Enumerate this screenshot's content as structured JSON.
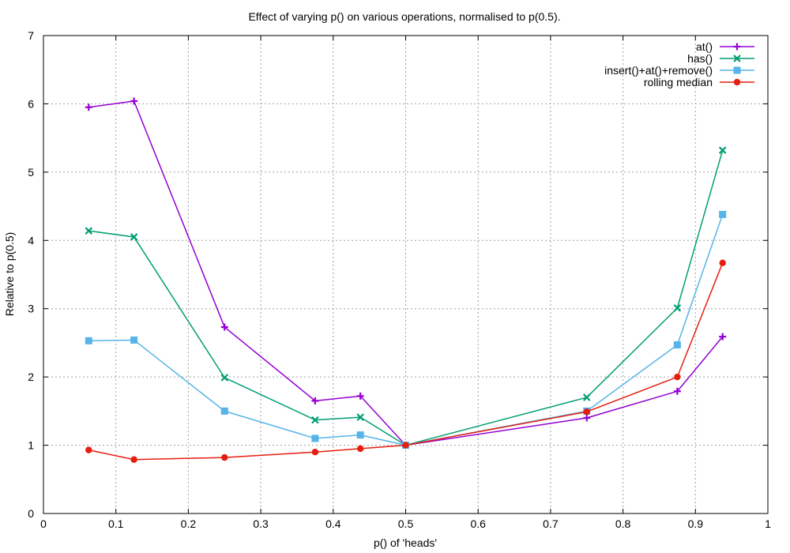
{
  "chart_data": {
    "type": "line",
    "title": "Effect of varying p() on various operations, normalised to p(0.5).",
    "xlabel": "p() of 'heads'",
    "ylabel": "Relative to p(0.5)",
    "xlim": [
      0,
      1
    ],
    "ylim": [
      0,
      7
    ],
    "xticks": [
      0,
      0.1,
      0.2,
      0.3,
      0.4,
      0.5,
      0.6,
      0.7,
      0.8,
      0.9,
      1
    ],
    "xtick_labels": [
      "0",
      "0.1",
      "0.2",
      "0.3",
      "0.4",
      "0.5",
      "0.6",
      "0.7",
      "0.8",
      "0.9",
      "1"
    ],
    "yticks": [
      0,
      1,
      2,
      3,
      4,
      5,
      6,
      7
    ],
    "ytick_labels": [
      "0",
      "1",
      "2",
      "3",
      "4",
      "5",
      "6",
      "7"
    ],
    "grid": true,
    "legend_position": "top-right",
    "series": [
      {
        "name": "at()",
        "color": "#9400d3",
        "marker": "plus",
        "points": [
          [
            0.0625,
            5.95
          ],
          [
            0.125,
            6.04
          ],
          [
            0.25,
            2.73
          ],
          [
            0.375,
            1.65
          ],
          [
            0.4375,
            1.72
          ],
          [
            0.5,
            1.0
          ],
          [
            0.75,
            1.4
          ],
          [
            0.875,
            1.79
          ],
          [
            0.9375,
            2.59
          ]
        ]
      },
      {
        "name": "has()",
        "color": "#009e73",
        "marker": "cross",
        "points": [
          [
            0.0625,
            4.14
          ],
          [
            0.125,
            4.05
          ],
          [
            0.25,
            1.99
          ],
          [
            0.375,
            1.37
          ],
          [
            0.4375,
            1.41
          ],
          [
            0.5,
            1.0
          ],
          [
            0.75,
            1.7
          ],
          [
            0.875,
            3.01
          ],
          [
            0.9375,
            5.32
          ]
        ]
      },
      {
        "name": "insert()+at()+remove()",
        "color": "#56b4e9",
        "marker": "square",
        "points": [
          [
            0.0625,
            2.53
          ],
          [
            0.125,
            2.54
          ],
          [
            0.25,
            1.5
          ],
          [
            0.375,
            1.1
          ],
          [
            0.4375,
            1.15
          ],
          [
            0.5,
            1.0
          ],
          [
            0.75,
            1.5
          ],
          [
            0.875,
            2.47
          ],
          [
            0.9375,
            4.38
          ]
        ]
      },
      {
        "name": "rolling median",
        "color": "#e51e10",
        "marker": "dot",
        "points": [
          [
            0.0625,
            0.93
          ],
          [
            0.125,
            0.79
          ],
          [
            0.25,
            0.82
          ],
          [
            0.375,
            0.9
          ],
          [
            0.4375,
            0.95
          ],
          [
            0.5,
            1.0
          ],
          [
            0.75,
            1.49
          ],
          [
            0.875,
            2.0
          ],
          [
            0.9375,
            3.67
          ]
        ]
      }
    ]
  }
}
